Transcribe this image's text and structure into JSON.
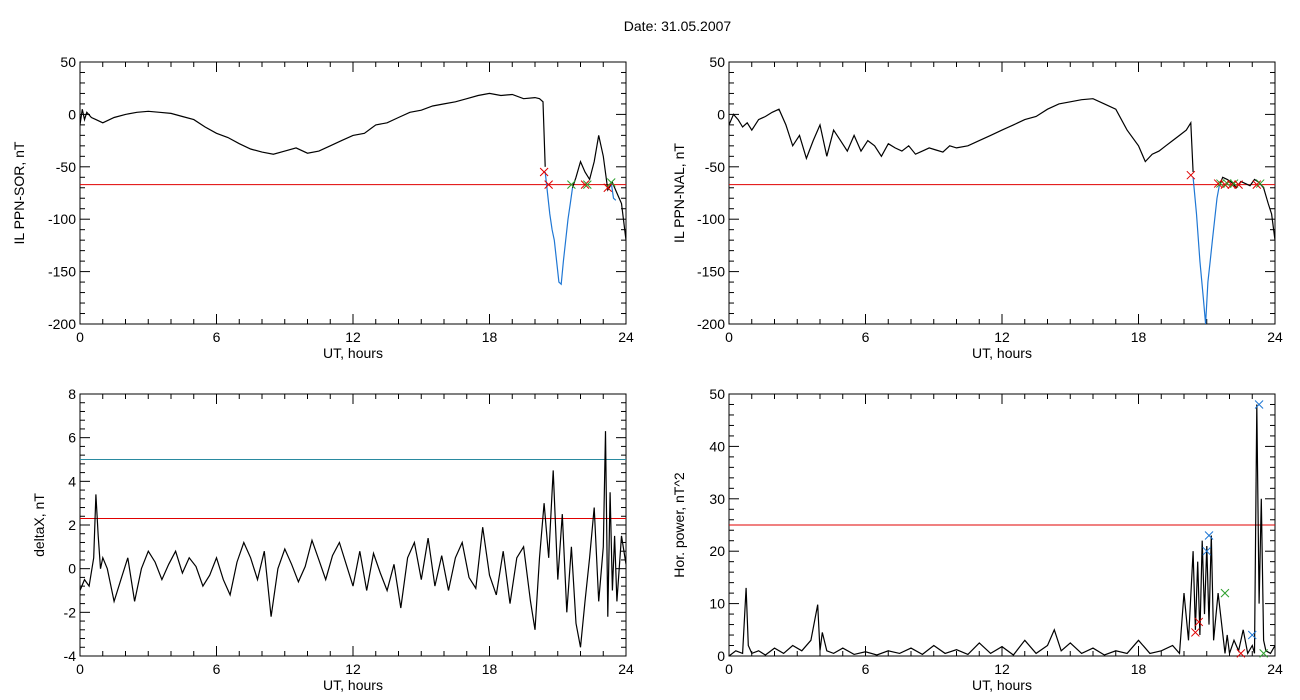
{
  "figure": {
    "title": "Date:  31.05.2007"
  },
  "chart_data": [
    {
      "type": "line",
      "ylabel": "IL PPN-SOR, nT",
      "xlabel": "UT, hours",
      "xlim": [
        0,
        24
      ],
      "ylim": [
        -200,
        50
      ],
      "xticks": [
        "0",
        "6",
        "12",
        "18",
        "24"
      ],
      "yticks": [
        "50",
        "0",
        "-50",
        "-100",
        "-150",
        "-200"
      ],
      "threshold_lines": [
        {
          "value": -67,
          "color": "#e00000"
        }
      ],
      "series": [
        {
          "color": "#000000",
          "x": [
            0,
            0.1,
            0.2,
            0.3,
            0.5,
            0.7,
            1,
            1.5,
            2,
            2.5,
            3,
            3.5,
            4,
            4.5,
            5,
            5.5,
            6,
            6.5,
            7,
            7.5,
            8,
            8.5,
            9,
            9.5,
            10,
            10.5,
            11,
            11.5,
            12,
            12.5,
            13,
            13.5,
            14,
            14.5,
            15,
            15.5,
            16,
            16.5,
            17,
            17.5,
            18,
            18.5,
            19,
            19.5,
            20,
            20.2,
            20.35,
            20.45
          ],
          "y": [
            -10,
            5,
            -5,
            2,
            -3,
            -5,
            -8,
            -3,
            0,
            2,
            3,
            2,
            1,
            -2,
            -5,
            -12,
            -18,
            -22,
            -28,
            -33,
            -36,
            -38,
            -35,
            -32,
            -37,
            -35,
            -30,
            -25,
            -20,
            -18,
            -10,
            -8,
            -3,
            2,
            4,
            8,
            10,
            12,
            15,
            18,
            20,
            18,
            19,
            15,
            16,
            15,
            12,
            -50
          ]
        },
        {
          "color": "#1f77d4",
          "x": [
            20.45,
            20.55,
            20.65,
            20.75,
            20.85,
            20.95,
            21.05,
            21.15,
            21.25,
            21.35,
            21.45,
            21.55,
            21.65
          ],
          "y": [
            -55,
            -75,
            -95,
            -110,
            -120,
            -140,
            -160,
            -162,
            -140,
            -120,
            -100,
            -85,
            -70
          ]
        },
        {
          "color": "#000000",
          "x": [
            21.65,
            21.8,
            22,
            22.2,
            22.4,
            22.6,
            22.8,
            23,
            23.2,
            23.4,
            23.6,
            23.8,
            24
          ],
          "y": [
            -70,
            -60,
            -45,
            -55,
            -62,
            -45,
            -20,
            -40,
            -72,
            -65,
            -75,
            -85,
            -120
          ]
        },
        {
          "color": "#1f77d4",
          "x": [
            23.35,
            23.45,
            23.55
          ],
          "y": [
            -65,
            -80,
            -82
          ]
        }
      ],
      "markers": [
        {
          "x": 20.4,
          "y": -55,
          "color": "#e00000"
        },
        {
          "x": 20.6,
          "y": -67,
          "color": "#e00000"
        },
        {
          "x": 21.6,
          "y": -67,
          "color": "#2ca02c"
        },
        {
          "x": 22.2,
          "y": -67,
          "color": "#e00000"
        },
        {
          "x": 22.3,
          "y": -67,
          "color": "#2ca02c"
        },
        {
          "x": 23.2,
          "y": -70,
          "color": "#e00000"
        },
        {
          "x": 23.35,
          "y": -65,
          "color": "#2ca02c"
        }
      ]
    },
    {
      "type": "line",
      "ylabel": "IL PPN-NAL, nT",
      "xlabel": "UT, hours",
      "xlim": [
        0,
        24
      ],
      "ylim": [
        -200,
        50
      ],
      "xticks": [
        "0",
        "6",
        "12",
        "18",
        "24"
      ],
      "yticks": [
        "50",
        "0",
        "-50",
        "-100",
        "-150",
        "-200"
      ],
      "threshold_lines": [
        {
          "value": -67,
          "color": "#e00000"
        }
      ],
      "series": [
        {
          "color": "#000000",
          "x": [
            0,
            0.2,
            0.4,
            0.6,
            0.8,
            1,
            1.3,
            1.6,
            1.9,
            2.2,
            2.5,
            2.8,
            3.1,
            3.4,
            3.7,
            4,
            4.3,
            4.6,
            4.9,
            5.2,
            5.5,
            5.8,
            6.1,
            6.4,
            6.7,
            7,
            7.3,
            7.6,
            7.9,
            8.2,
            8.5,
            8.8,
            9.1,
            9.4,
            9.7,
            10,
            10.5,
            11,
            11.5,
            12,
            12.5,
            13,
            13.5,
            14,
            14.5,
            15,
            15.5,
            16,
            16.5,
            17,
            17.5,
            18,
            18.3,
            18.6,
            18.9,
            19.2,
            19.5,
            19.8,
            20.1,
            20.3,
            20.4
          ],
          "y": [
            -10,
            0,
            -5,
            -12,
            -8,
            -15,
            -5,
            -2,
            2,
            5,
            -10,
            -30,
            -20,
            -42,
            -25,
            -10,
            -40,
            -15,
            -25,
            -35,
            -20,
            -35,
            -25,
            -30,
            -40,
            -28,
            -32,
            -35,
            -30,
            -38,
            -35,
            -32,
            -34,
            -36,
            -30,
            -32,
            -30,
            -25,
            -20,
            -15,
            -10,
            -5,
            -2,
            5,
            10,
            12,
            14,
            15,
            10,
            5,
            -15,
            -30,
            -45,
            -38,
            -35,
            -30,
            -25,
            -20,
            -15,
            -8,
            -55
          ]
        },
        {
          "color": "#1f77d4",
          "x": [
            20.4,
            20.55,
            20.7,
            20.85,
            20.95,
            21.05,
            21.15,
            21.25,
            21.35,
            21.45,
            21.55
          ],
          "y": [
            -60,
            -95,
            -140,
            -175,
            -200,
            -160,
            -140,
            -120,
            -100,
            -80,
            -68
          ]
        },
        {
          "color": "#000000",
          "x": [
            21.55,
            21.7,
            21.9,
            22.1,
            22.3,
            22.5,
            22.7,
            22.9,
            23.1,
            23.3,
            23.5,
            23.7,
            23.85,
            24
          ],
          "y": [
            -68,
            -60,
            -62,
            -65,
            -70,
            -64,
            -66,
            -68,
            -62,
            -65,
            -70,
            -85,
            -95,
            -120
          ]
        }
      ],
      "markers": [
        {
          "x": 20.3,
          "y": -58,
          "color": "#e00000"
        },
        {
          "x": 21.5,
          "y": -66,
          "color": "#e00000"
        },
        {
          "x": 21.6,
          "y": -66,
          "color": "#2ca02c"
        },
        {
          "x": 21.8,
          "y": -67,
          "color": "#e00000"
        },
        {
          "x": 21.9,
          "y": -66,
          "color": "#2ca02c"
        },
        {
          "x": 22.1,
          "y": -67,
          "color": "#e00000"
        },
        {
          "x": 22.2,
          "y": -66,
          "color": "#2ca02c"
        },
        {
          "x": 22.4,
          "y": -67,
          "color": "#e00000"
        },
        {
          "x": 23.2,
          "y": -67,
          "color": "#e00000"
        },
        {
          "x": 23.35,
          "y": -66,
          "color": "#2ca02c"
        }
      ]
    },
    {
      "type": "line",
      "ylabel": "deltaX, nT",
      "xlabel": "UT, hours",
      "xlim": [
        0,
        24
      ],
      "ylim": [
        -4,
        8
      ],
      "xticks": [
        "0",
        "6",
        "12",
        "18",
        "24"
      ],
      "yticks": [
        "8",
        "6",
        "4",
        "2",
        "0",
        "-2",
        "-4"
      ],
      "threshold_lines": [
        {
          "value": 5.0,
          "color": "#2a8aa0"
        },
        {
          "value": 2.3,
          "color": "#e00000"
        }
      ],
      "series": [
        {
          "color": "#000000",
          "x": [
            0,
            0.2,
            0.4,
            0.6,
            0.7,
            0.8,
            0.9,
            1,
            1.2,
            1.5,
            1.8,
            2.1,
            2.4,
            2.7,
            3,
            3.3,
            3.6,
            3.9,
            4.2,
            4.5,
            4.8,
            5.1,
            5.4,
            5.7,
            6,
            6.3,
            6.6,
            6.9,
            7.2,
            7.5,
            7.8,
            8.1,
            8.4,
            8.7,
            9,
            9.3,
            9.6,
            9.9,
            10.2,
            10.5,
            10.8,
            11.1,
            11.4,
            11.7,
            12,
            12.3,
            12.6,
            12.9,
            13.2,
            13.5,
            13.8,
            14.1,
            14.4,
            14.7,
            15,
            15.3,
            15.6,
            15.9,
            16.2,
            16.5,
            16.8,
            17.1,
            17.4,
            17.7,
            18,
            18.3,
            18.6,
            18.9,
            19.2,
            19.5,
            19.8,
            20,
            20.2,
            20.4,
            20.6,
            20.8,
            21,
            21.2,
            21.4,
            21.6,
            21.8,
            22,
            22.2,
            22.4,
            22.6,
            22.8,
            23,
            23.1,
            23.2,
            23.3,
            23.4,
            23.5,
            23.6,
            23.8,
            24
          ],
          "y": [
            -1,
            -0.5,
            -0.8,
            0.5,
            3.4,
            1.5,
            0,
            0.5,
            0,
            -1.5,
            -0.5,
            0.5,
            -1.5,
            0,
            0.8,
            0.3,
            -0.5,
            0.2,
            0.8,
            -0.2,
            0.5,
            0.1,
            -0.8,
            -0.3,
            0.5,
            -0.5,
            -1.2,
            0.3,
            1.2,
            0.5,
            -0.5,
            0.8,
            -2.2,
            0,
            0.9,
            0.2,
            -0.6,
            0.1,
            1.3,
            0.4,
            -0.5,
            0.6,
            1.2,
            0.2,
            -0.8,
            0.8,
            -1,
            0.7,
            -0.2,
            -1,
            0.2,
            -1.8,
            0.5,
            1.2,
            -0.5,
            1.4,
            -0.8,
            0.6,
            -1,
            0.5,
            1.2,
            -0.4,
            -0.9,
            1.9,
            -0.3,
            -1.2,
            0.8,
            -1.6,
            0.5,
            1,
            -1.5,
            -2.8,
            0.5,
            3,
            0.5,
            4.5,
            -0.5,
            2.5,
            -2,
            1,
            -2.5,
            -3.6,
            -1.5,
            0.5,
            2.8,
            -1.5,
            1,
            6.3,
            -2.2,
            3.5,
            -1,
            1.5,
            -1.5,
            1.5,
            0.2
          ]
        }
      ],
      "markers": []
    },
    {
      "type": "line",
      "ylabel": "Hor. power, nT^2",
      "xlabel": "UT, hours",
      "xlim": [
        0,
        24
      ],
      "ylim": [
        0,
        50
      ],
      "xticks": [
        "0",
        "6",
        "12",
        "18",
        "24"
      ],
      "yticks": [
        "50",
        "40",
        "30",
        "20",
        "10",
        "0"
      ],
      "threshold_lines": [
        {
          "value": 25,
          "color": "#e00000"
        }
      ],
      "series": [
        {
          "color": "#000000",
          "x": [
            0,
            0.3,
            0.6,
            0.75,
            0.85,
            1,
            1.3,
            1.6,
            2,
            2.4,
            2.8,
            3.2,
            3.6,
            3.9,
            4,
            4.1,
            4.3,
            4.6,
            5,
            5.5,
            6,
            6.5,
            7,
            7.5,
            8,
            8.5,
            9,
            9.5,
            10,
            10.5,
            11,
            11.5,
            12,
            12.5,
            13,
            13.5,
            14,
            14.3,
            14.6,
            15,
            15.5,
            16,
            16.5,
            17,
            17.5,
            18,
            18.5,
            19,
            19.5,
            19.8,
            20,
            20.2,
            20.4,
            20.5,
            20.6,
            20.7,
            20.8,
            20.9,
            21,
            21.1,
            21.2,
            21.3,
            21.5,
            21.8,
            21.9,
            22,
            22.2,
            22.4,
            22.6,
            22.8,
            23,
            23.1,
            23.2,
            23.3,
            23.4,
            23.5,
            23.6,
            23.8,
            24
          ],
          "y": [
            0,
            1,
            0.5,
            13,
            2,
            0.5,
            1,
            0.2,
            1.5,
            0.5,
            2,
            1,
            3,
            9.8,
            1,
            4.5,
            1,
            0.5,
            1.5,
            0.3,
            0.8,
            0.2,
            1,
            0.5,
            1.5,
            0.3,
            2,
            0.5,
            1.2,
            0.3,
            2.5,
            0.5,
            1.8,
            0.2,
            3,
            0.5,
            2,
            5,
            1,
            2.5,
            0.5,
            1.5,
            0.2,
            1,
            0.5,
            3,
            0.5,
            1,
            2,
            0.5,
            12,
            3,
            20,
            5,
            18,
            4,
            22,
            8,
            21,
            6,
            23,
            3,
            12,
            0.5,
            4,
            0.5,
            3,
            1,
            5,
            0.5,
            2,
            0.5,
            48,
            10,
            30,
            3,
            1,
            0.5,
            2
          ]
        }
      ],
      "markers": [
        {
          "x": 20.5,
          "y": 4.5,
          "color": "#e00000"
        },
        {
          "x": 20.65,
          "y": 6.5,
          "color": "#e00000"
        },
        {
          "x": 21.0,
          "y": 20,
          "color": "#1f77d4"
        },
        {
          "x": 21.1,
          "y": 23,
          "color": "#1f77d4"
        },
        {
          "x": 21.8,
          "y": 12,
          "color": "#2ca02c"
        },
        {
          "x": 22.5,
          "y": 0.5,
          "color": "#e00000"
        },
        {
          "x": 23.0,
          "y": 4,
          "color": "#1f77d4"
        },
        {
          "x": 23.3,
          "y": 48,
          "color": "#1f77d4"
        },
        {
          "x": 23.5,
          "y": 0.5,
          "color": "#2ca02c"
        }
      ]
    }
  ]
}
